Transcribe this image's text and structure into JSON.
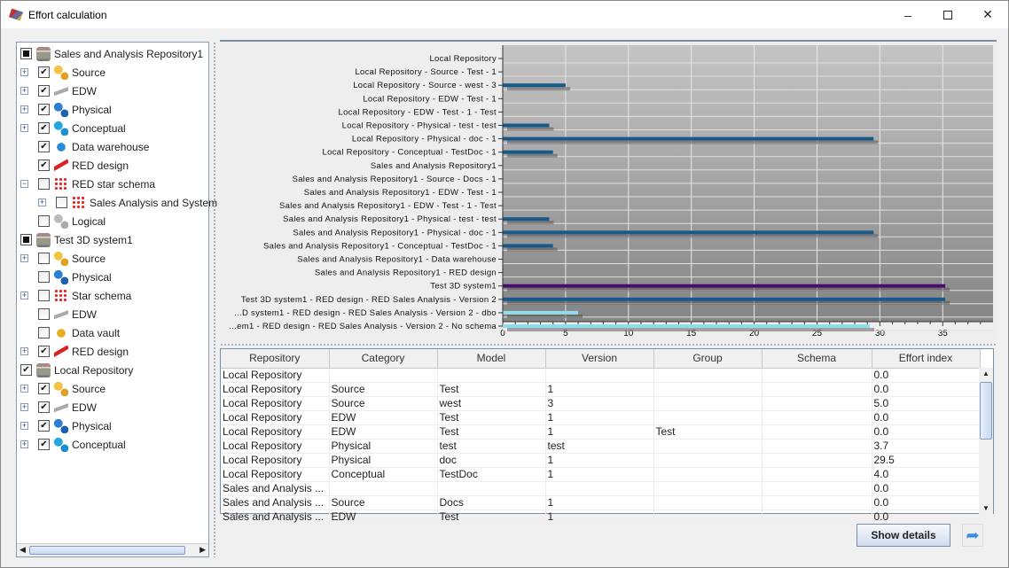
{
  "window": {
    "title": "Effort calculation",
    "minimize_icon": "minimize-icon",
    "maximize_icon": "maximize-icon",
    "close_icon": "close-icon"
  },
  "tree": [
    {
      "label": "Sales and Analysis Repository1",
      "level": 0,
      "check": "partial",
      "icon": "repository-icon",
      "expander": false
    },
    {
      "label": "Source",
      "level": 1,
      "check": "checked",
      "icon": "source-icon",
      "expander": true
    },
    {
      "label": "EDW",
      "level": 1,
      "check": "checked",
      "icon": "edw-icon",
      "expander": true
    },
    {
      "label": "Physical",
      "level": 1,
      "check": "checked",
      "icon": "physical-icon",
      "expander": true
    },
    {
      "label": "Conceptual",
      "level": 1,
      "check": "checked",
      "icon": "conceptual-icon",
      "expander": true
    },
    {
      "label": "Data warehouse",
      "level": 1,
      "check": "checked",
      "icon": "data-warehouse-icon",
      "expander": false
    },
    {
      "label": "RED design",
      "level": 1,
      "check": "checked",
      "icon": "red-design-icon",
      "expander": false
    },
    {
      "label": "RED star schema",
      "level": 1,
      "check": "unchecked",
      "icon": "star-schema-icon",
      "expander": "minus"
    },
    {
      "label": "Sales Analysis and System",
      "level": 2,
      "check": "unchecked",
      "icon": "star-schema-icon",
      "expander": true
    },
    {
      "label": "Logical",
      "level": 1,
      "check": "unchecked",
      "icon": "logical-icon",
      "expander": false
    },
    {
      "label": "Test 3D system1",
      "level": 0,
      "check": "partial",
      "icon": "repository-icon",
      "expander": false
    },
    {
      "label": "Source",
      "level": 1,
      "check": "unchecked",
      "icon": "source-icon",
      "expander": true
    },
    {
      "label": "Physical",
      "level": 1,
      "check": "unchecked",
      "icon": "physical-icon",
      "expander": false
    },
    {
      "label": "Star schema",
      "level": 1,
      "check": "unchecked",
      "icon": "star-schema-icon",
      "expander": true
    },
    {
      "label": "EDW",
      "level": 1,
      "check": "unchecked",
      "icon": "edw-icon",
      "expander": false
    },
    {
      "label": "Data vault",
      "level": 1,
      "check": "unchecked",
      "icon": "data-vault-icon",
      "expander": false
    },
    {
      "label": "RED design",
      "level": 1,
      "check": "checked",
      "icon": "red-design-icon",
      "expander": true
    },
    {
      "label": "Local Repository",
      "level": 0,
      "check": "checked",
      "icon": "repository-icon",
      "expander": false
    },
    {
      "label": "Source",
      "level": 1,
      "check": "checked",
      "icon": "source-icon",
      "expander": true
    },
    {
      "label": "EDW",
      "level": 1,
      "check": "checked",
      "icon": "edw-icon",
      "expander": true
    },
    {
      "label": "Physical",
      "level": 1,
      "check": "checked",
      "icon": "physical-icon",
      "expander": true
    },
    {
      "label": "Conceptual",
      "level": 1,
      "check": "checked",
      "icon": "conceptual-icon",
      "expander": true
    }
  ],
  "chart_data": {
    "type": "bar",
    "orientation": "horizontal",
    "categories": [
      "Local Repository",
      "Local Repository - Source - Test - 1",
      "Local Repository - Source - west - 3",
      "Local Repository - EDW - Test - 1",
      "Local Repository - EDW - Test - 1 - Test",
      "Local Repository - Physical - test - test",
      "Local Repository - Physical - doc - 1",
      "Local Repository - Conceptual - TestDoc - 1",
      "Sales and Analysis Repository1",
      "Sales and Analysis Repository1 - Source - Docs - 1",
      "Sales and Analysis Repository1 - EDW - Test - 1",
      "Sales and Analysis Repository1 - EDW - Test - 1 - Test",
      "Sales and Analysis Repository1 - Physical - test - test",
      "Sales and Analysis Repository1 - Physical - doc - 1",
      "Sales and Analysis Repository1 - Conceptual - TestDoc - 1",
      "Sales and Analysis Repository1 - Data warehouse",
      "Sales and Analysis Repository1 - RED design",
      "Test 3D system1",
      "Test 3D system1 - RED design - RED Sales Analysis - Version 2",
      "...D system1 - RED design - RED Sales Analysis - Version 2 - dbo",
      "...em1 - RED design - RED Sales Analysis - Version 2 - No schema"
    ],
    "values": [
      0,
      0,
      5.0,
      0,
      0,
      3.7,
      29.5,
      4.0,
      0,
      0,
      0,
      0,
      3.7,
      29.5,
      4.0,
      0,
      0,
      35.2,
      35.2,
      6.0,
      29.2
    ],
    "bar_colors": [
      "#175a8a",
      "#175a8a",
      "#175a8a",
      "#175a8a",
      "#175a8a",
      "#175a8a",
      "#175a8a",
      "#175a8a",
      "#175a8a",
      "#175a8a",
      "#175a8a",
      "#175a8a",
      "#175a8a",
      "#175a8a",
      "#175a8a",
      "#175a8a",
      "#175a8a",
      "#4d0a70",
      "#175a8a",
      "#8fdcec",
      "#8fdcec"
    ],
    "xticks": [
      0,
      5,
      10,
      15,
      20,
      25,
      30,
      35
    ],
    "xlim": [
      0,
      39
    ],
    "grid": true,
    "title": "",
    "xlabel": "",
    "ylabel": ""
  },
  "table": {
    "columns": [
      "Repository",
      "Category",
      "Model",
      "Version",
      "Group",
      "Schema",
      "Effort index"
    ],
    "rows": [
      [
        "Local Repository",
        "",
        "",
        "",
        "",
        "",
        "0.0"
      ],
      [
        "Local Repository",
        "Source",
        "Test",
        "1",
        "",
        "",
        "0.0"
      ],
      [
        "Local Repository",
        "Source",
        "west",
        "3",
        "",
        "",
        "5.0"
      ],
      [
        "Local Repository",
        "EDW",
        "Test",
        "1",
        "",
        "",
        "0.0"
      ],
      [
        "Local Repository",
        "EDW",
        "Test",
        "1",
        "Test",
        "",
        "0.0"
      ],
      [
        "Local Repository",
        "Physical",
        "test",
        "test",
        "",
        "",
        "3.7"
      ],
      [
        "Local Repository",
        "Physical",
        "doc",
        "1",
        "",
        "",
        "29.5"
      ],
      [
        "Local Repository",
        "Conceptual",
        "TestDoc",
        "1",
        "",
        "",
        "4.0"
      ],
      [
        "Sales and Analysis ...",
        "",
        "",
        "",
        "",
        "",
        "0.0"
      ],
      [
        "Sales and Analysis ...",
        "Source",
        "Docs",
        "1",
        "",
        "",
        "0.0"
      ],
      [
        "Sales and Analysis ...",
        "EDW",
        "Test",
        "1",
        "",
        "",
        "0.0"
      ]
    ]
  },
  "buttons": {
    "show_details": "Show details",
    "export_icon": "export-arrow-icon"
  }
}
